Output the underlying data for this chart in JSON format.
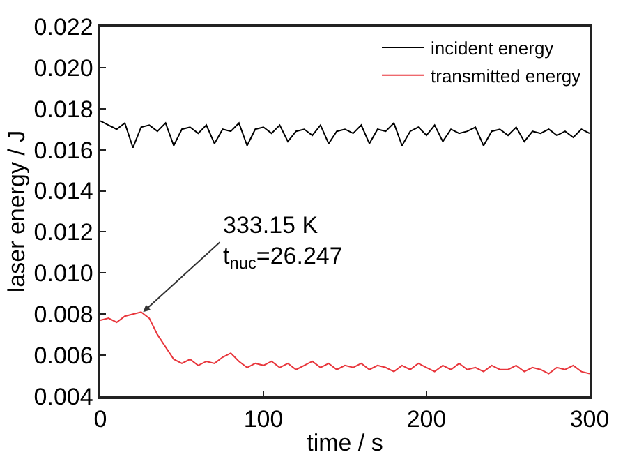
{
  "chart_data": {
    "type": "line",
    "xlabel": "time / s",
    "ylabel": "laser energy / J",
    "x": [
      0,
      5,
      10,
      15,
      20,
      25,
      30,
      35,
      40,
      45,
      50,
      55,
      60,
      65,
      70,
      75,
      80,
      85,
      90,
      95,
      100,
      105,
      110,
      115,
      120,
      125,
      130,
      135,
      140,
      145,
      150,
      155,
      160,
      165,
      170,
      175,
      180,
      185,
      190,
      195,
      200,
      205,
      210,
      215,
      220,
      225,
      230,
      235,
      240,
      245,
      250,
      255,
      260,
      265,
      270,
      275,
      280,
      285,
      290,
      295,
      300
    ],
    "series": [
      {
        "name": "incident energy",
        "color": "#000000",
        "values": [
          0.0174,
          0.0172,
          0.017,
          0.0173,
          0.0161,
          0.0171,
          0.0172,
          0.0169,
          0.0173,
          0.0162,
          0.017,
          0.0171,
          0.0168,
          0.0172,
          0.0163,
          0.017,
          0.0169,
          0.0173,
          0.0162,
          0.017,
          0.0171,
          0.0168,
          0.0172,
          0.0164,
          0.0169,
          0.017,
          0.0167,
          0.0172,
          0.0163,
          0.0169,
          0.017,
          0.0168,
          0.0172,
          0.0163,
          0.017,
          0.0169,
          0.0173,
          0.0162,
          0.0169,
          0.0171,
          0.0167,
          0.0172,
          0.0164,
          0.017,
          0.0168,
          0.0169,
          0.0171,
          0.0162,
          0.0169,
          0.017,
          0.0167,
          0.0171,
          0.0164,
          0.0169,
          0.0168,
          0.017,
          0.0167,
          0.0169,
          0.0166,
          0.017,
          0.0168
        ]
      },
      {
        "name": "transmitted energy",
        "color": "#e8363c",
        "values": [
          0.0077,
          0.0078,
          0.0076,
          0.0079,
          0.008,
          0.0081,
          0.0078,
          0.007,
          0.0064,
          0.0058,
          0.0056,
          0.0058,
          0.0055,
          0.0057,
          0.0056,
          0.0059,
          0.0061,
          0.0057,
          0.0054,
          0.0056,
          0.0055,
          0.0057,
          0.0054,
          0.0056,
          0.0053,
          0.0055,
          0.0057,
          0.0054,
          0.0056,
          0.0053,
          0.0055,
          0.0054,
          0.0056,
          0.0053,
          0.0055,
          0.0054,
          0.0052,
          0.0055,
          0.0053,
          0.0056,
          0.0054,
          0.0052,
          0.0055,
          0.0053,
          0.0056,
          0.0053,
          0.0054,
          0.0052,
          0.0055,
          0.0053,
          0.0053,
          0.0055,
          0.0052,
          0.0054,
          0.0053,
          0.0051,
          0.0054,
          0.0053,
          0.0055,
          0.0052,
          0.0051
        ]
      }
    ],
    "xlim": [
      0,
      300
    ],
    "xticks": [
      0,
      100,
      200,
      300
    ],
    "ylim": [
      0.004,
      0.022
    ],
    "yticks": [
      {
        "value": 0.004,
        "label": "0.004"
      },
      {
        "value": 0.006,
        "label": "0.006"
      },
      {
        "value": 0.008,
        "label": "0.008"
      },
      {
        "value": 0.01,
        "label": "0.010"
      },
      {
        "value": 0.012,
        "label": "0.012"
      },
      {
        "value": 0.014,
        "label": "0.014"
      },
      {
        "value": 0.016,
        "label": "0.016"
      },
      {
        "value": 0.018,
        "label": "0.018"
      },
      {
        "value": 0.02,
        "label": "0.020"
      },
      {
        "value": 0.022,
        "label": "0.022"
      }
    ],
    "annotations": [
      {
        "text": "333.15 K\nt$_{nuc}$=26.247",
        "x": 26.247,
        "y": 0.0081
      }
    ],
    "legend": "top right",
    "marker": "none",
    "line_style": "solid"
  }
}
